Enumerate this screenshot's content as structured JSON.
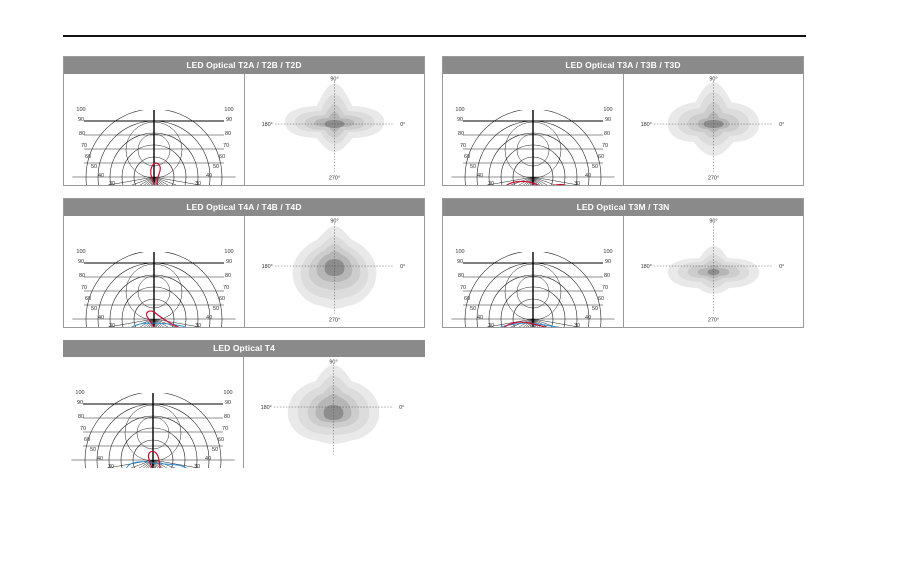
{
  "panels": [
    {
      "title": "LED Optical T2A / T2B / T2D",
      "polar": {
        "ring_labels": [
          "100",
          "90",
          "80",
          "70",
          "60",
          "50",
          "40",
          "30",
          "20",
          "10"
        ],
        "bottom_labels": [
          "10",
          "0°",
          "10"
        ]
      },
      "isolux": {
        "top": "90°",
        "left": "180°",
        "right": "0°",
        "bottom": "270°"
      }
    },
    {
      "title": "LED Optical T3A / T3B / T3D",
      "polar": {
        "ring_labels": [
          "100",
          "90",
          "80",
          "70",
          "60",
          "50",
          "40",
          "30",
          "20",
          "10"
        ],
        "bottom_labels": [
          "10",
          "0°",
          "10"
        ]
      },
      "isolux": {
        "top": "90°",
        "left": "180°",
        "right": "0°",
        "bottom": "270°"
      }
    },
    {
      "title": "LED Optical T4A / T4B / T4D",
      "polar": {
        "ring_labels": [
          "100",
          "90",
          "80",
          "70",
          "60",
          "50",
          "40",
          "30",
          "20",
          "10"
        ],
        "bottom_labels": [
          "10",
          "0°",
          "10"
        ]
      },
      "isolux": {
        "top": "90°",
        "left": "180°",
        "right": "0°",
        "bottom": "270°"
      }
    },
    {
      "title": "LED Optical T3M / T3N",
      "polar": {
        "ring_labels": [
          "100",
          "90",
          "80",
          "70",
          "60",
          "50",
          "40",
          "30",
          "20",
          "10"
        ],
        "bottom_labels": [
          "10",
          "0°",
          "10"
        ]
      },
      "isolux": {
        "top": "90°",
        "left": "180°",
        "right": "0°",
        "bottom": "270°"
      }
    },
    {
      "title": "LED Optical T4",
      "polar": {
        "ring_labels": [
          "100",
          "90",
          "80",
          "70",
          "60",
          "50",
          "40",
          "30",
          "20",
          "10"
        ],
        "bottom_labels": [
          "10",
          "0°",
          "10"
        ]
      },
      "isolux": {
        "top": "90°",
        "left": "180°",
        "right": "0°",
        "bottom": ""
      }
    }
  ],
  "colors": {
    "header_bg": "#8a8a8a",
    "curve_red": "#c8102e",
    "curve_blue": "#2a8fd6",
    "grid": "#222222"
  }
}
